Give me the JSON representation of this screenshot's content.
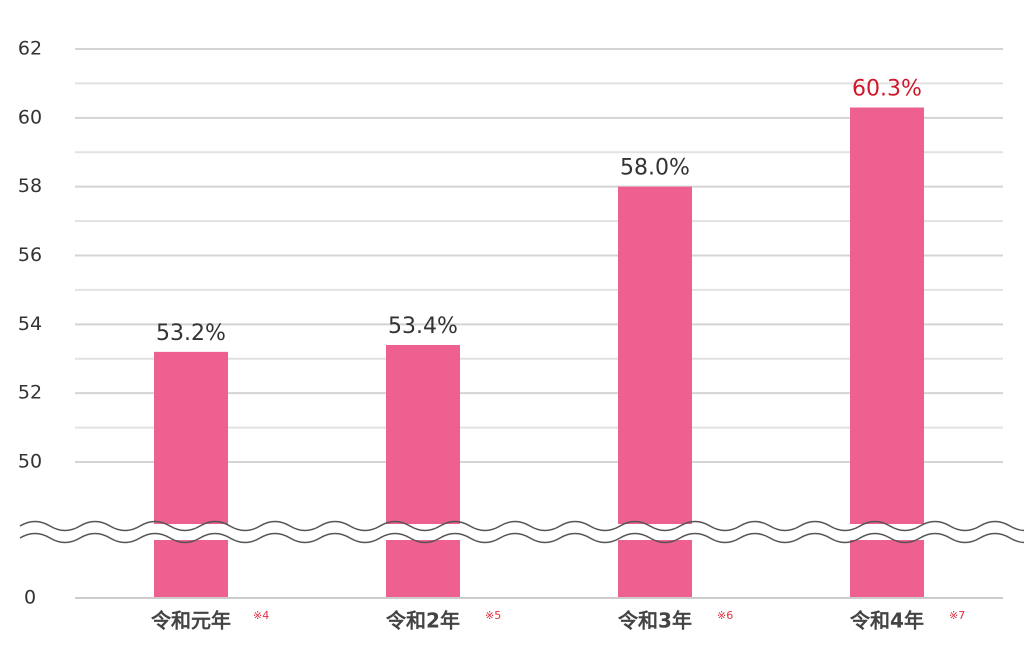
{
  "chart_data": {
    "type": "bar",
    "categories": [
      "令和元年",
      "令和2年",
      "令和3年",
      "令和4年"
    ],
    "category_notes": [
      "※4",
      "※5",
      "※6",
      "※7"
    ],
    "values": [
      53.2,
      53.4,
      58.0,
      60.3
    ],
    "value_labels": [
      "53.2%",
      "53.4%",
      "58.0%",
      "60.3%"
    ],
    "value_label_colors": [
      "#333333",
      "#333333",
      "#333333",
      "#d0182a"
    ],
    "color": "#ee6090",
    "ylim": [
      0,
      62
    ],
    "yticks": [
      0,
      50,
      52,
      54,
      56,
      58,
      60,
      62
    ],
    "axis_break": true,
    "grid": true,
    "minor_grid": true
  }
}
